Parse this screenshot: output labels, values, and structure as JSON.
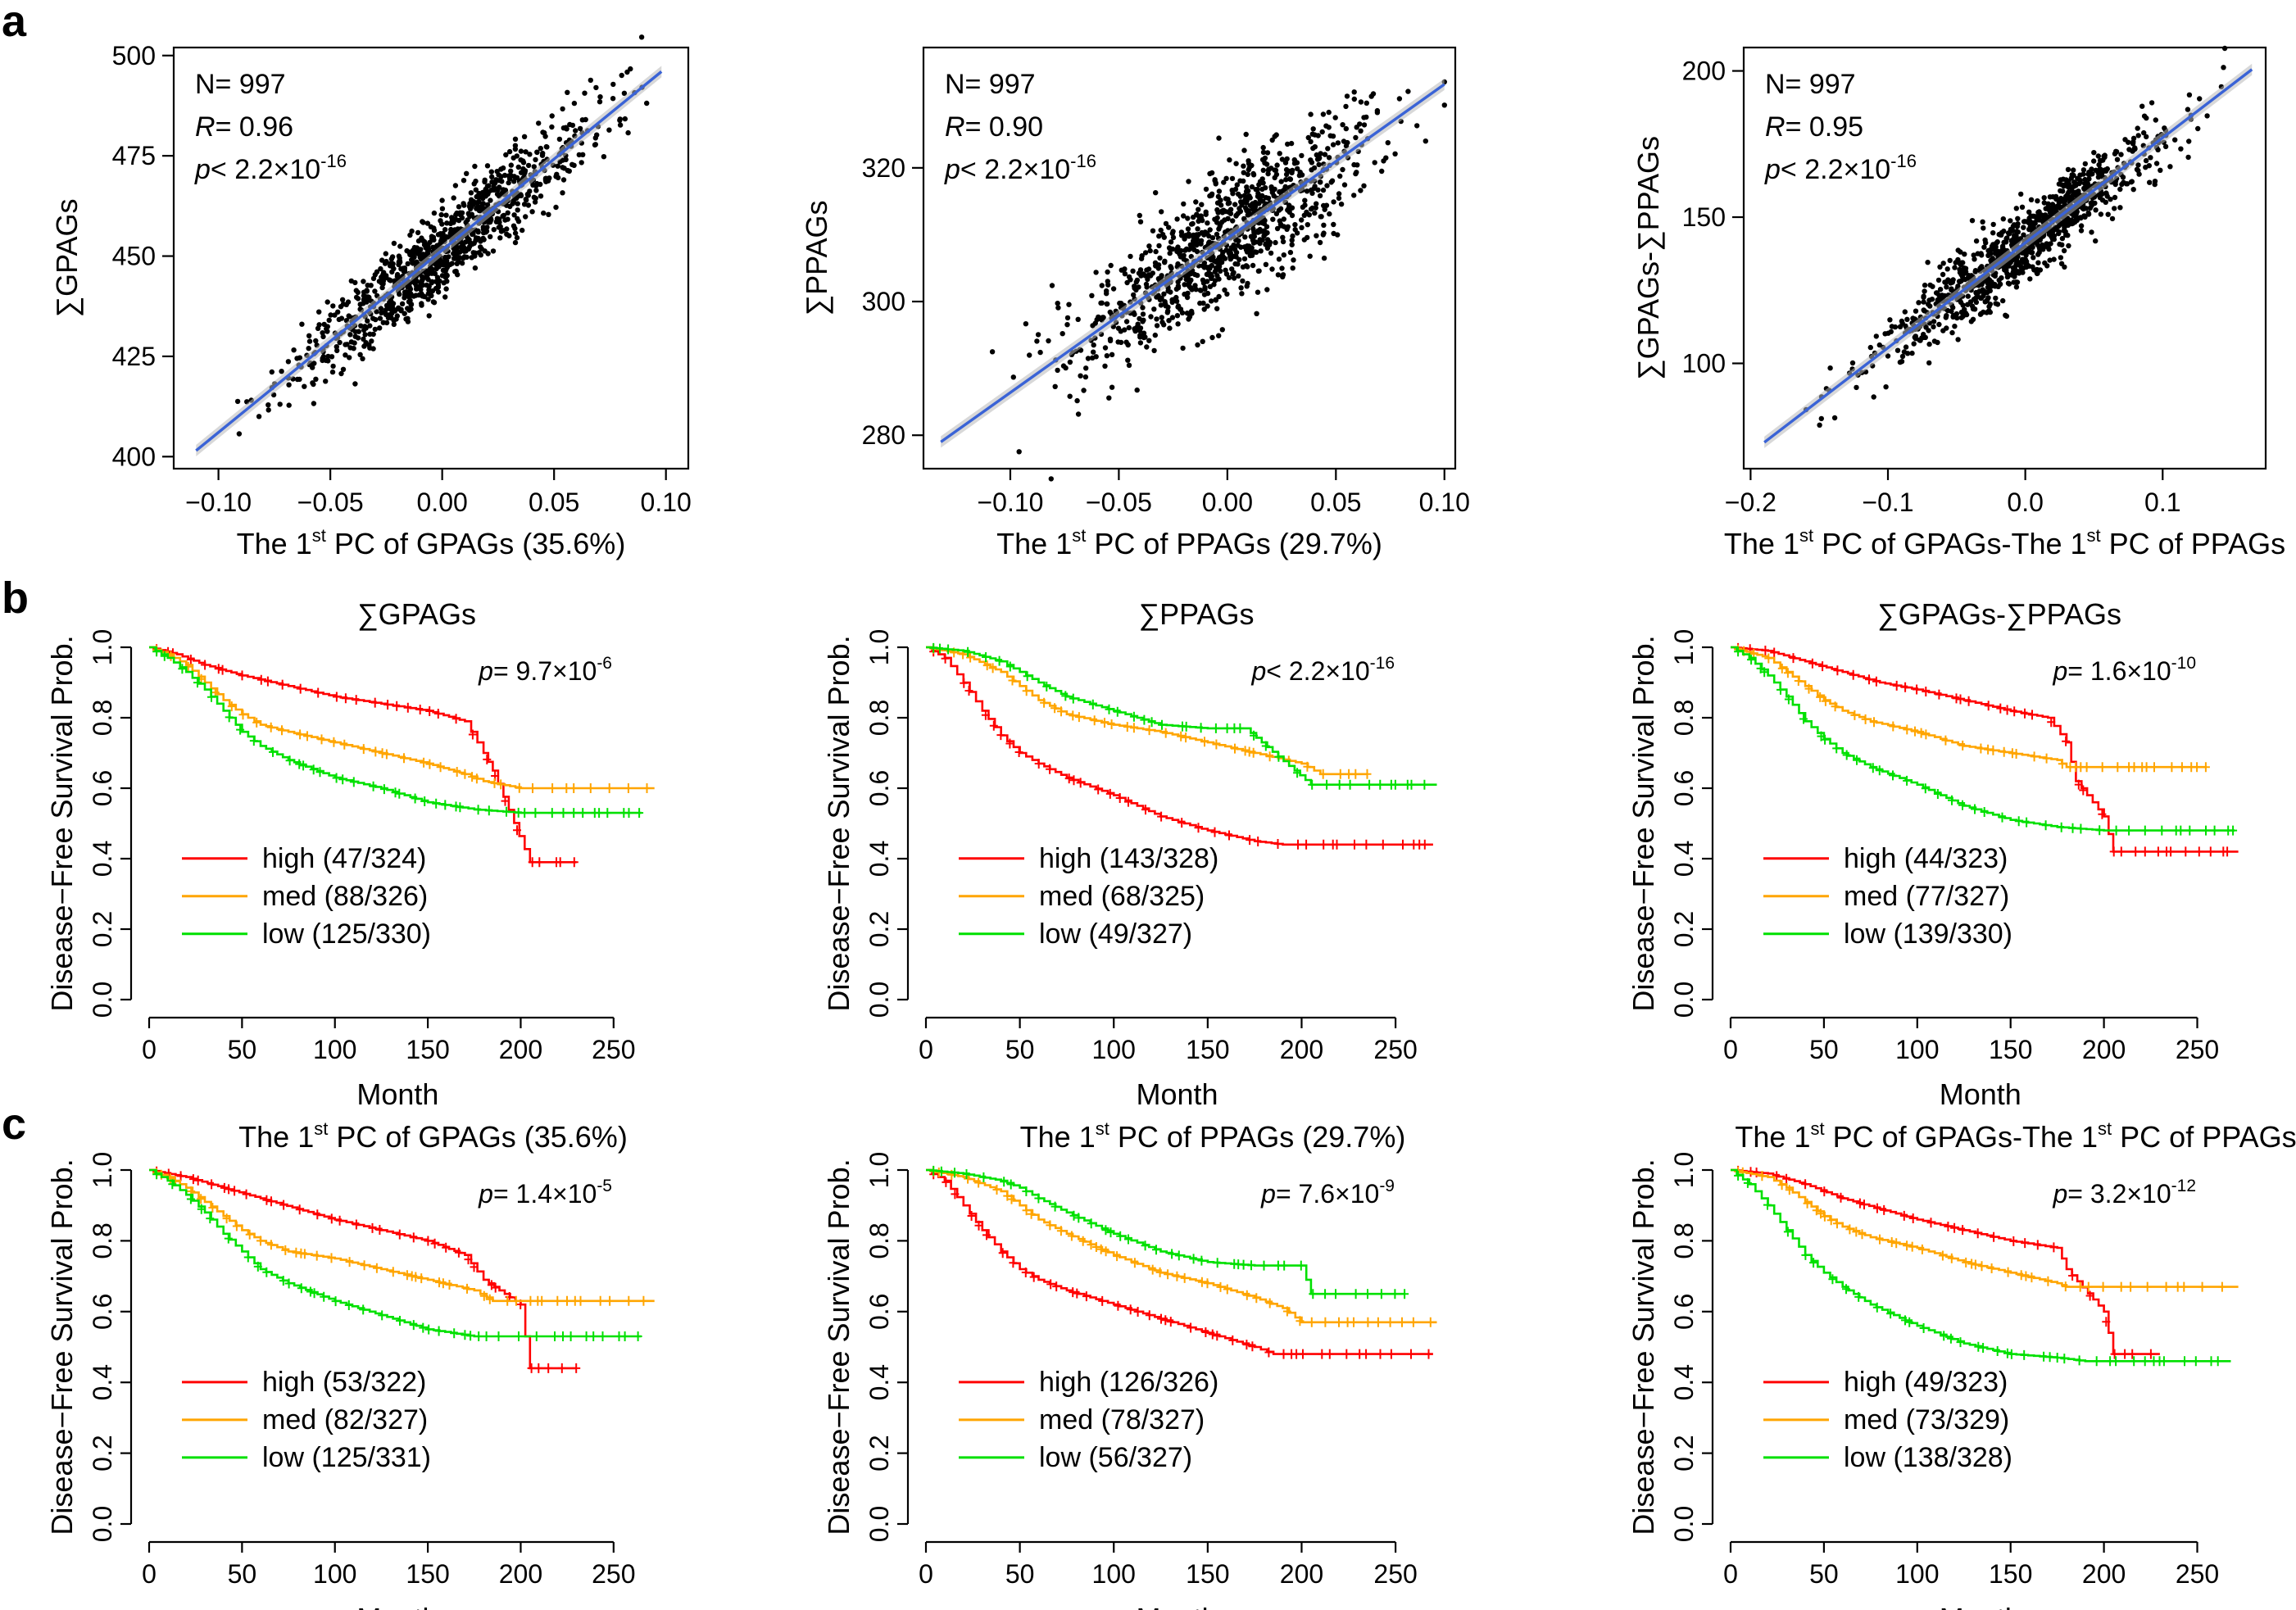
{
  "figure": {
    "panel_labels": [
      "a",
      "b",
      "c"
    ]
  },
  "chart_data": [
    {
      "panel": "a",
      "type": "scatter",
      "xlabel": "The 1st PC of GPAGs (35.6%)",
      "xlabel_pre": "The 1",
      "xlabel_sup": "st",
      "xlabel_post": " PC of GPAGs (35.6%)",
      "ylabel": "∑GPAGs",
      "xlim": [
        -0.12,
        0.11
      ],
      "ylim": [
        397,
        502
      ],
      "xticks": [
        -0.1,
        -0.05,
        0.0,
        0.05,
        0.1
      ],
      "xticklabels": [
        "−0.10",
        "−0.05",
        "0.00",
        "0.05",
        "0.10"
      ],
      "yticks": [
        400,
        425,
        450,
        475,
        500
      ],
      "yticklabels": [
        "400",
        "425",
        "450",
        "475",
        "500"
      ],
      "fit": {
        "x": [
          -0.11,
          0.098
        ],
        "y": [
          401.5,
          496.0
        ]
      },
      "cloud": {
        "n": 997,
        "x_mean": 0.0,
        "x_sd": 0.033,
        "resid_sd": 5.2
      },
      "stats": {
        "n": "997",
        "r": "0.96",
        "p_base": "2.2×10",
        "p_exp": "-16"
      }
    },
    {
      "panel": "a",
      "type": "scatter",
      "xlabel": "The 1st PC of PPAGs (29.7%)",
      "xlabel_pre": "The 1",
      "xlabel_sup": "st",
      "xlabel_post": " PC of PPAGs (29.7%)",
      "ylabel": "∑PPAGs",
      "xlim": [
        -0.14,
        0.105
      ],
      "ylim": [
        275,
        338
      ],
      "xticks": [
        -0.1,
        -0.05,
        0.0,
        0.05,
        0.1
      ],
      "xticklabels": [
        "−0.10",
        "−0.05",
        "0.00",
        "0.05",
        "0.10"
      ],
      "yticks": [
        280,
        300,
        320
      ],
      "yticklabels": [
        "280",
        "300",
        "320"
      ],
      "fit": {
        "x": [
          -0.132,
          0.1
        ],
        "y": [
          279.0,
          332.5
        ]
      },
      "cloud": {
        "n": 997,
        "x_mean": 0.0,
        "x_sd": 0.033,
        "resid_sd": 4.8
      },
      "stats": {
        "n": "997",
        "r": "0.90",
        "p_base": "2.2×10",
        "p_exp": "-16"
      }
    },
    {
      "panel": "a",
      "type": "scatter",
      "xlabel": "The 1st PC of GPAGs-The 1st PC of PPAGs",
      "xlabel_pre": "The 1",
      "xlabel_sup": "st",
      "xlabel_post": " PC of GPAGs-The 1",
      "xlabel_sup2": "st",
      "xlabel_post2": " PC of PPAGs",
      "ylabel": "∑GPAGs-∑PPAGs",
      "xlim": [
        -0.205,
        0.175
      ],
      "ylim": [
        64,
        208
      ],
      "xticks": [
        -0.2,
        -0.1,
        0.0,
        0.1
      ],
      "xticklabels": [
        "−0.2",
        "−0.1",
        "0.0",
        "0.1"
      ],
      "yticks": [
        100,
        150,
        200
      ],
      "yticklabels": [
        "100",
        "150",
        "200"
      ],
      "fit": {
        "x": [
          -0.19,
          0.165
        ],
        "y": [
          73.0,
          200.5
        ]
      },
      "cloud": {
        "n": 997,
        "x_mean": 0.0,
        "x_sd": 0.052,
        "resid_sd": 6.5
      },
      "stats": {
        "n": "997",
        "r": "0.95",
        "p_base": "2.2×10",
        "p_exp": "-16"
      }
    },
    {
      "panel": "b",
      "type": "line",
      "title": "∑GPAGs",
      "xlabel": "Month",
      "ylabel": "Disease−Free Survival Prob.",
      "xlim": [
        0,
        275
      ],
      "ylim": [
        0,
        1
      ],
      "xticks": [
        0,
        50,
        100,
        150,
        200,
        250
      ],
      "xticklabels": [
        "0",
        "50",
        "100",
        "150",
        "200",
        "250"
      ],
      "yticks": [
        0,
        0.2,
        0.4,
        0.6,
        0.8,
        1.0
      ],
      "yticklabels": [
        "0.0",
        "0.2",
        "0.4",
        "0.6",
        "0.8",
        "1.0"
      ],
      "p_prefix": "= ",
      "p_base": "9.7×10",
      "p_exp": "-6",
      "series": [
        {
          "name": "high",
          "label": "high (47/324)",
          "color": "#ff0000",
          "end": 230,
          "x": [
            0,
            15,
            30,
            50,
            75,
            100,
            125,
            150,
            170,
            180,
            185,
            205
          ],
          "y": [
            1.0,
            0.98,
            0.95,
            0.92,
            0.89,
            0.86,
            0.84,
            0.82,
            0.79,
            0.7,
            0.65,
            0.39
          ]
        },
        {
          "name": "med",
          "label": "med (88/326)",
          "color": "#ffa500",
          "end": 272,
          "x": [
            0,
            10,
            20,
            30,
            40,
            50,
            60,
            75,
            100,
            125,
            150,
            170,
            180,
            200
          ],
          "y": [
            1.0,
            0.98,
            0.95,
            0.9,
            0.85,
            0.81,
            0.78,
            0.76,
            0.73,
            0.7,
            0.67,
            0.64,
            0.62,
            0.6
          ]
        },
        {
          "name": "low",
          "label": "low (125/330)",
          "color": "#00e000",
          "end": 265,
          "x": [
            0,
            10,
            20,
            30,
            40,
            50,
            60,
            75,
            100,
            125,
            150,
            175,
            200
          ],
          "y": [
            1.0,
            0.97,
            0.93,
            0.88,
            0.82,
            0.76,
            0.72,
            0.68,
            0.63,
            0.6,
            0.56,
            0.54,
            0.53
          ]
        }
      ]
    },
    {
      "panel": "b",
      "type": "line",
      "title": "∑PPAGs",
      "xlabel": "Month",
      "ylabel": "Disease−Free Survival Prob.",
      "xlim": [
        0,
        275
      ],
      "ylim": [
        0,
        1
      ],
      "xticks": [
        0,
        50,
        100,
        150,
        200,
        250
      ],
      "xticklabels": [
        "0",
        "50",
        "100",
        "150",
        "200",
        "250"
      ],
      "yticks": [
        0,
        0.2,
        0.4,
        0.6,
        0.8,
        1.0
      ],
      "yticklabels": [
        "0.0",
        "0.2",
        "0.4",
        "0.6",
        "0.8",
        "1.0"
      ],
      "p_prefix": "< ",
      "p_base": "2.2×10",
      "p_exp": "-16",
      "series": [
        {
          "name": "high",
          "label": "high (143/328)",
          "color": "#ff0000",
          "end": 270,
          "x": [
            0,
            10,
            20,
            30,
            40,
            50,
            60,
            75,
            100,
            125,
            150,
            175,
            190,
            200
          ],
          "y": [
            1.0,
            0.97,
            0.9,
            0.82,
            0.75,
            0.7,
            0.67,
            0.63,
            0.58,
            0.52,
            0.48,
            0.45,
            0.44,
            0.44
          ]
        },
        {
          "name": "med",
          "label": "med (68/325)",
          "color": "#ffa500",
          "end": 235,
          "x": [
            0,
            20,
            40,
            50,
            60,
            75,
            100,
            125,
            150,
            175,
            200,
            210
          ],
          "y": [
            1.0,
            0.98,
            0.93,
            0.89,
            0.85,
            0.81,
            0.78,
            0.76,
            0.73,
            0.7,
            0.67,
            0.64
          ]
        },
        {
          "name": "low",
          "label": "low (49/327)",
          "color": "#00e000",
          "end": 272,
          "x": [
            0,
            20,
            40,
            50,
            60,
            75,
            100,
            125,
            150,
            170,
            205
          ],
          "y": [
            1.0,
            0.99,
            0.96,
            0.93,
            0.9,
            0.86,
            0.82,
            0.78,
            0.77,
            0.77,
            0.61
          ]
        }
      ]
    },
    {
      "panel": "b",
      "type": "line",
      "title": "∑GPAGs-∑PPAGs",
      "xlabel": "Month",
      "ylabel": "Disease−Free Survival Prob.",
      "xlim": [
        0,
        275
      ],
      "ylim": [
        0,
        1
      ],
      "xticks": [
        0,
        50,
        100,
        150,
        200,
        250
      ],
      "xticklabels": [
        "0",
        "50",
        "100",
        "150",
        "200",
        "250"
      ],
      "yticks": [
        0,
        0.2,
        0.4,
        0.6,
        0.8,
        1.0
      ],
      "yticklabels": [
        "0.0",
        "0.2",
        "0.4",
        "0.6",
        "0.8",
        "1.0"
      ],
      "p_prefix": "= ",
      "p_base": "1.6×10",
      "p_exp": "-10",
      "series": [
        {
          "name": "high",
          "label": "high (44/323)",
          "color": "#ff0000",
          "end": 272,
          "x": [
            0,
            20,
            40,
            60,
            80,
            100,
            125,
            150,
            170,
            180,
            185,
            200,
            205
          ],
          "y": [
            1.0,
            0.99,
            0.96,
            0.93,
            0.9,
            0.88,
            0.85,
            0.82,
            0.8,
            0.73,
            0.62,
            0.52,
            0.42
          ]
        },
        {
          "name": "med",
          "label": "med (77/327)",
          "color": "#ffa500",
          "end": 255,
          "x": [
            0,
            20,
            30,
            40,
            50,
            60,
            75,
            100,
            125,
            150,
            175,
            180
          ],
          "y": [
            1.0,
            0.97,
            0.93,
            0.89,
            0.85,
            0.82,
            0.79,
            0.76,
            0.72,
            0.7,
            0.68,
            0.66
          ]
        },
        {
          "name": "low",
          "label": "low (139/330)",
          "color": "#00e000",
          "end": 270,
          "x": [
            0,
            10,
            20,
            30,
            40,
            50,
            60,
            75,
            100,
            125,
            150,
            175,
            200
          ],
          "y": [
            1.0,
            0.97,
            0.92,
            0.86,
            0.79,
            0.74,
            0.7,
            0.66,
            0.61,
            0.55,
            0.51,
            0.49,
            0.48
          ]
        }
      ]
    },
    {
      "panel": "c",
      "type": "line",
      "title": "The 1st PC of GPAGs (35.6%)",
      "title_pre": "The 1",
      "title_sup": "st",
      "title_post": " PC of GPAGs (35.6%)",
      "xlabel": "Month",
      "ylabel": "Disease−Free Survival Prob.",
      "xlim": [
        0,
        275
      ],
      "ylim": [
        0,
        1
      ],
      "xticks": [
        0,
        50,
        100,
        150,
        200,
        250
      ],
      "xticklabels": [
        "0",
        "50",
        "100",
        "150",
        "200",
        "250"
      ],
      "yticks": [
        0,
        0.2,
        0.4,
        0.6,
        0.8,
        1.0
      ],
      "yticklabels": [
        "0.0",
        "0.2",
        "0.4",
        "0.6",
        "0.8",
        "1.0"
      ],
      "p_prefix": "= ",
      "p_base": "1.4×10",
      "p_exp": "-5",
      "series": [
        {
          "name": "high",
          "label": "high (53/322)",
          "color": "#ff0000",
          "end": 230,
          "x": [
            0,
            20,
            40,
            60,
            80,
            100,
            125,
            150,
            170,
            180,
            200,
            205
          ],
          "y": [
            1.0,
            0.98,
            0.95,
            0.92,
            0.89,
            0.86,
            0.83,
            0.8,
            0.76,
            0.69,
            0.62,
            0.44
          ]
        },
        {
          "name": "med",
          "label": "med (82/327)",
          "color": "#ffa500",
          "end": 272,
          "x": [
            0,
            10,
            20,
            30,
            40,
            50,
            60,
            75,
            100,
            125,
            150,
            175,
            185,
            200
          ],
          "y": [
            1.0,
            0.98,
            0.95,
            0.91,
            0.87,
            0.83,
            0.8,
            0.77,
            0.75,
            0.72,
            0.69,
            0.66,
            0.63,
            0.63
          ]
        },
        {
          "name": "low",
          "label": "low (125/331)",
          "color": "#00e000",
          "end": 265,
          "x": [
            0,
            10,
            20,
            30,
            40,
            50,
            60,
            75,
            100,
            125,
            150,
            175,
            200
          ],
          "y": [
            1.0,
            0.97,
            0.93,
            0.88,
            0.82,
            0.77,
            0.72,
            0.68,
            0.63,
            0.59,
            0.55,
            0.53,
            0.53
          ]
        }
      ]
    },
    {
      "panel": "c",
      "type": "line",
      "title": "The 1st PC of PPAGs (29.7%)",
      "title_pre": "The 1",
      "title_sup": "st",
      "title_post": " PC of PPAGs (29.7%)",
      "xlabel": "Month",
      "ylabel": "Disease−Free Survival Prob.",
      "xlim": [
        0,
        275
      ],
      "ylim": [
        0,
        1
      ],
      "xticks": [
        0,
        50,
        100,
        150,
        200,
        250
      ],
      "xticklabels": [
        "0",
        "50",
        "100",
        "150",
        "200",
        "250"
      ],
      "yticks": [
        0,
        0.2,
        0.4,
        0.6,
        0.8,
        1.0
      ],
      "yticklabels": [
        "0.0",
        "0.2",
        "0.4",
        "0.6",
        "0.8",
        "1.0"
      ],
      "p_prefix": "= ",
      "p_base": "7.6×10",
      "p_exp": "-9",
      "series": [
        {
          "name": "high",
          "label": "high (126/326)",
          "color": "#ff0000",
          "end": 270,
          "x": [
            0,
            10,
            20,
            30,
            40,
            50,
            60,
            75,
            100,
            125,
            150,
            175,
            185,
            200
          ],
          "y": [
            1.0,
            0.97,
            0.9,
            0.83,
            0.77,
            0.72,
            0.69,
            0.66,
            0.62,
            0.58,
            0.54,
            0.5,
            0.48,
            0.48
          ]
        },
        {
          "name": "med",
          "label": "med (78/327)",
          "color": "#ffa500",
          "end": 272,
          "x": [
            0,
            20,
            40,
            50,
            60,
            75,
            100,
            125,
            150,
            175,
            190,
            200
          ],
          "y": [
            1.0,
            0.98,
            0.94,
            0.9,
            0.86,
            0.82,
            0.76,
            0.71,
            0.68,
            0.64,
            0.61,
            0.57
          ]
        },
        {
          "name": "low",
          "label": "low (56/327)",
          "color": "#00e000",
          "end": 255,
          "x": [
            0,
            20,
            40,
            50,
            60,
            75,
            100,
            125,
            150,
            175,
            200,
            205
          ],
          "y": [
            1.0,
            0.99,
            0.97,
            0.95,
            0.92,
            0.88,
            0.82,
            0.77,
            0.74,
            0.73,
            0.73,
            0.65
          ]
        }
      ]
    },
    {
      "panel": "c",
      "type": "line",
      "title": "The 1st PC of GPAGs-The 1st PC of PPAGs",
      "title_pre": "The 1",
      "title_sup": "st",
      "title_post": " PC of GPAGs-The 1",
      "title_sup2": "st",
      "title_post2": " PC of PPAGs",
      "xlabel": "Month",
      "ylabel": "Disease−Free Survival Prob.",
      "xlim": [
        0,
        275
      ],
      "ylim": [
        0,
        1
      ],
      "xticks": [
        0,
        50,
        100,
        150,
        200,
        250
      ],
      "xticklabels": [
        "0",
        "50",
        "100",
        "150",
        "200",
        "250"
      ],
      "yticks": [
        0,
        0.2,
        0.4,
        0.6,
        0.8,
        1.0
      ],
      "yticklabels": [
        "0.0",
        "0.2",
        "0.4",
        "0.6",
        "0.8",
        "1.0"
      ],
      "p_prefix": "= ",
      "p_base": "3.2×10",
      "p_exp": "-12",
      "series": [
        {
          "name": "high",
          "label": "high (49/323)",
          "color": "#ff0000",
          "end": 230,
          "x": [
            0,
            20,
            40,
            60,
            80,
            100,
            125,
            150,
            175,
            180,
            200,
            205
          ],
          "y": [
            1.0,
            0.99,
            0.96,
            0.92,
            0.89,
            0.86,
            0.83,
            0.8,
            0.78,
            0.72,
            0.6,
            0.48
          ]
        },
        {
          "name": "med",
          "label": "med (73/329)",
          "color": "#ffa500",
          "end": 272,
          "x": [
            0,
            20,
            30,
            40,
            50,
            60,
            75,
            100,
            125,
            150,
            175,
            180
          ],
          "y": [
            1.0,
            0.98,
            0.95,
            0.91,
            0.87,
            0.84,
            0.81,
            0.78,
            0.74,
            0.71,
            0.68,
            0.67
          ]
        },
        {
          "name": "low",
          "label": "low (138/328)",
          "color": "#00e000",
          "end": 268,
          "x": [
            0,
            10,
            20,
            30,
            40,
            50,
            60,
            75,
            100,
            125,
            150,
            175,
            190
          ],
          "y": [
            1.0,
            0.96,
            0.9,
            0.83,
            0.76,
            0.71,
            0.67,
            0.62,
            0.56,
            0.51,
            0.48,
            0.47,
            0.46
          ]
        }
      ]
    }
  ]
}
